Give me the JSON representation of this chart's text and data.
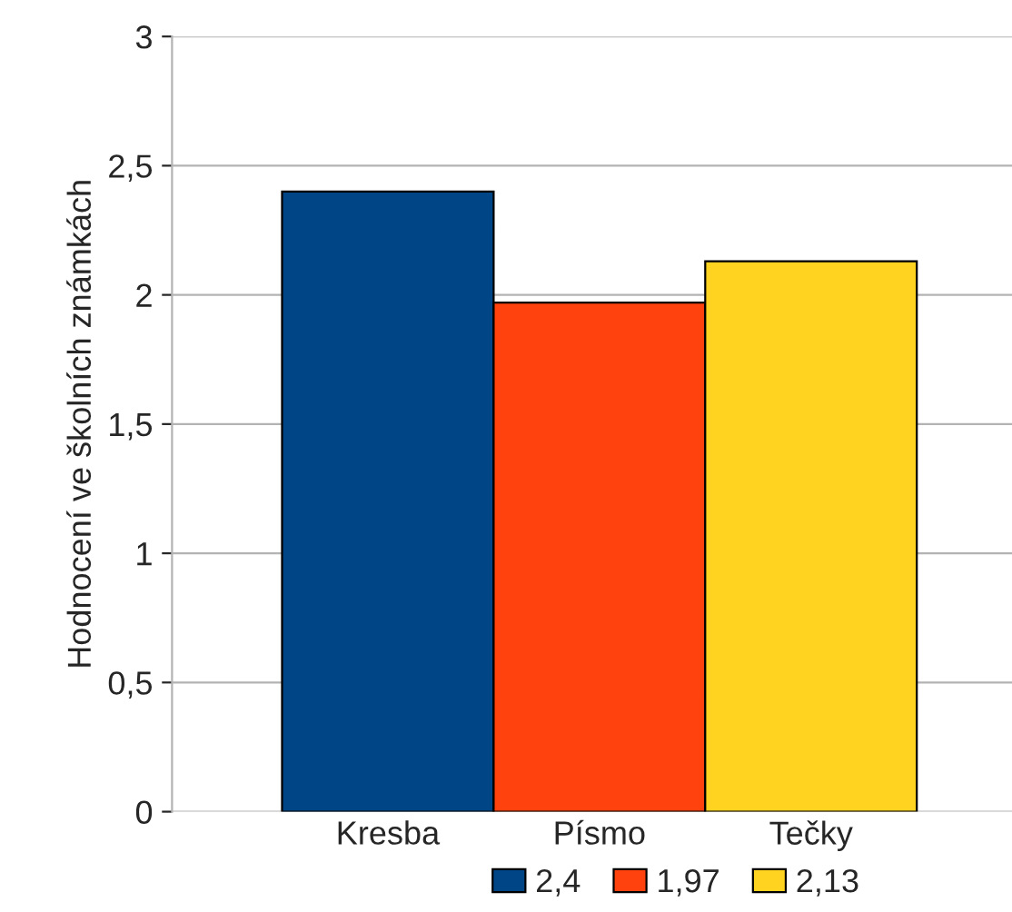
{
  "chart_data": {
    "type": "bar",
    "ylabel": "Hodnocení ve školních známkách",
    "categories": [
      "Kresba",
      "Písmo",
      "Tečky"
    ],
    "series": [
      {
        "name": "2,4",
        "color": "#004586",
        "values": [
          2.4,
          null,
          null
        ]
      },
      {
        "name": "1,97",
        "color": "#ff420e",
        "values": [
          null,
          1.97,
          null
        ]
      },
      {
        "name": "2,13",
        "color": "#ffd320",
        "values": [
          null,
          null,
          2.13
        ]
      }
    ],
    "ylim": [
      0,
      3
    ],
    "yticks": [
      0,
      {
        "value": 0.5,
        "label": "0,5"
      },
      1,
      {
        "value": 1.5,
        "label": "1,5"
      },
      2,
      {
        "value": 2.5,
        "label": "2,5"
      },
      3
    ],
    "grid": "y",
    "legend": "bottom"
  }
}
